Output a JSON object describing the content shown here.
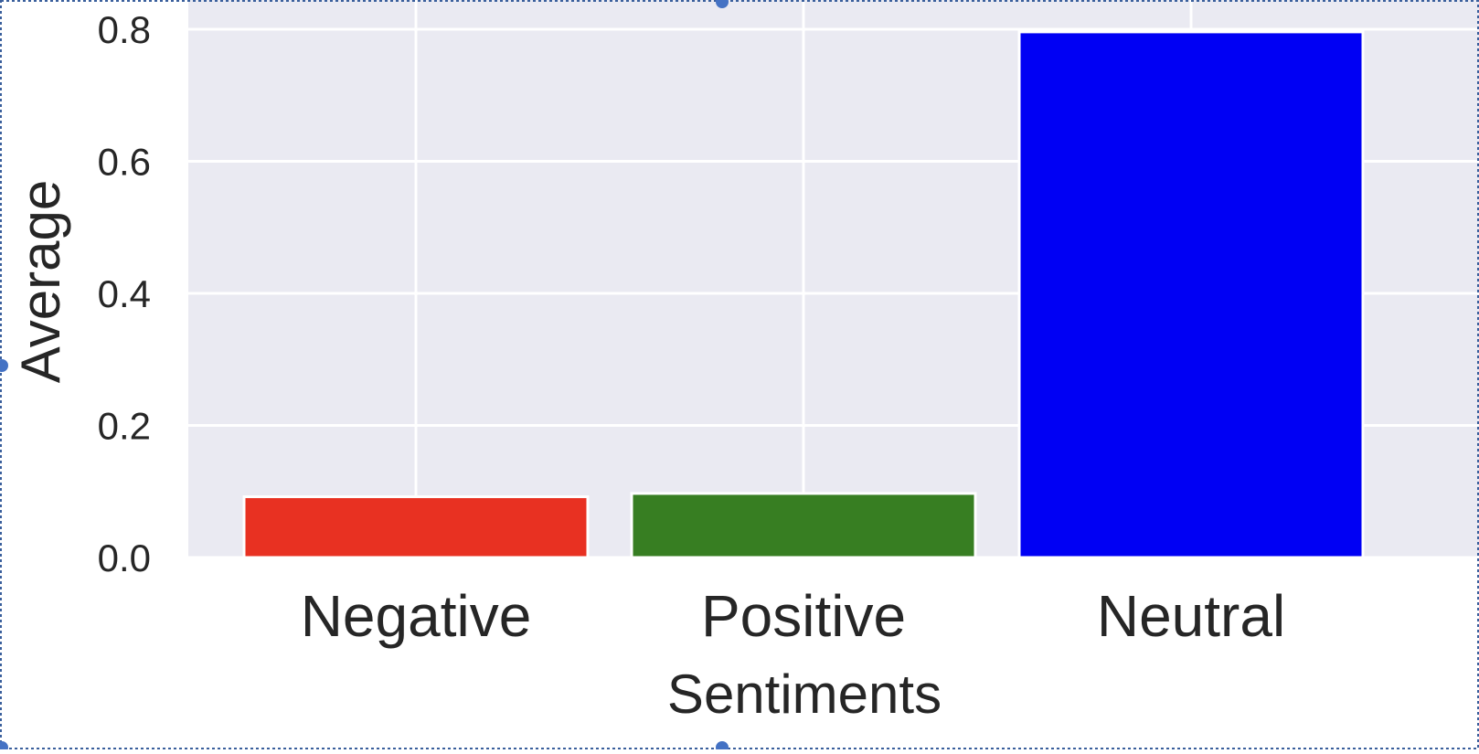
{
  "chart_data": {
    "type": "bar",
    "categories": [
      "Negative",
      "Positive",
      "Neutral"
    ],
    "values": [
      0.092,
      0.097,
      0.796
    ],
    "bar_colors": [
      "#e83122",
      "#377e22",
      "#0000f4"
    ],
    "title": "",
    "xlabel": "Sentiments",
    "ylabel": "Average",
    "ylim": [
      0,
      0.8
    ],
    "yticks": [
      0.0,
      0.2,
      0.4,
      0.6,
      0.8
    ],
    "ytick_labels": [
      "0.0",
      "0.2",
      "0.4",
      "0.6",
      "0.8"
    ],
    "grid": true,
    "legend": "none"
  },
  "colors": {
    "plot_background": "#eaeaf2",
    "grid": "#ffffff",
    "text": "#262626",
    "selection_border": "#4472c4"
  }
}
